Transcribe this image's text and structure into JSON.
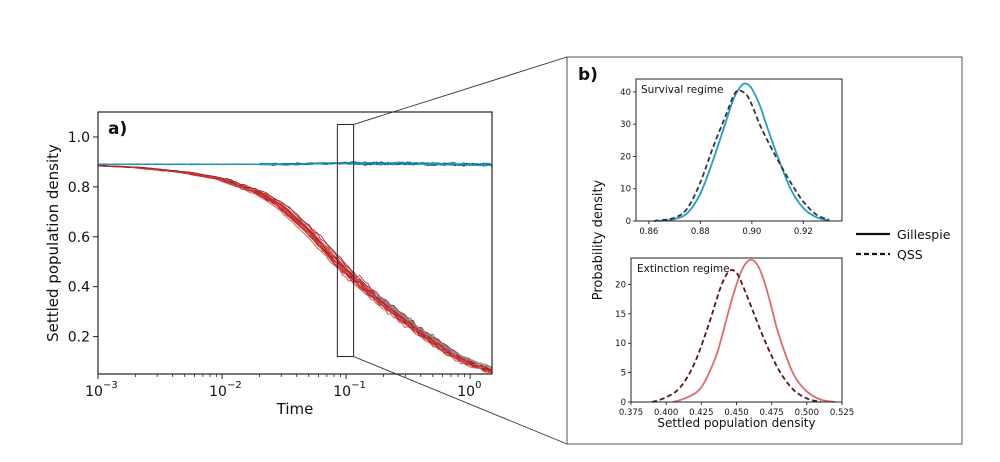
{
  "figure": {
    "legend": [
      {
        "label": "Gillespie",
        "style": "solid"
      },
      {
        "label": "QSS",
        "style": "dashed"
      }
    ],
    "colors": {
      "survival": "#1f9fc9",
      "survival_dark": "#0d3b4f",
      "extinction": "#cf2a2a",
      "extinction_dark": "#4a0f0f",
      "extinction_light": "#e06a6a",
      "qss_extinction": "#5a1414",
      "qss_survival": "#333333",
      "axis": "#222222"
    }
  },
  "chart_data": [
    {
      "id": "a",
      "panel_label": "a)",
      "type": "line",
      "x_scale": "log",
      "xlabel": "Time",
      "ylabel": "Settled population density",
      "xlim": [
        0.001,
        1.5
      ],
      "ylim": [
        0.05,
        1.1
      ],
      "x_ticks": [
        {
          "value": 0.001,
          "label": "10",
          "exp": "−3"
        },
        {
          "value": 0.01,
          "label": "10",
          "exp": "−2"
        },
        {
          "value": 0.1,
          "label": "10",
          "exp": "−1"
        },
        {
          "value": 1,
          "label": "10",
          "exp": "0"
        }
      ],
      "y_ticks": [
        {
          "value": 0.2,
          "label": "0.2"
        },
        {
          "value": 0.4,
          "label": "0.4"
        },
        {
          "value": 0.6,
          "label": "0.6"
        },
        {
          "value": 0.8,
          "label": "0.8"
        },
        {
          "value": 1.0,
          "label": "1.0"
        }
      ],
      "highlight_window": {
        "x": [
          0.085,
          0.115
        ],
        "y": [
          0.12,
          1.05
        ]
      },
      "series": [
        {
          "name": "Survival trajectories (ensemble)",
          "regime": "survival",
          "x": [
            0.001,
            0.003,
            0.01,
            0.03,
            0.1,
            0.3,
            1.0,
            1.5
          ],
          "y": [
            0.89,
            0.89,
            0.89,
            0.89,
            0.895,
            0.893,
            0.89,
            0.888
          ]
        },
        {
          "name": "Extinction trajectories (ensemble)",
          "regime": "extinction",
          "x": [
            0.001,
            0.002,
            0.005,
            0.01,
            0.02,
            0.03,
            0.05,
            0.07,
            0.1,
            0.15,
            0.2,
            0.3,
            0.5,
            0.7,
            1.0,
            1.5
          ],
          "y": [
            0.885,
            0.878,
            0.858,
            0.83,
            0.775,
            0.72,
            0.62,
            0.54,
            0.46,
            0.38,
            0.33,
            0.26,
            0.18,
            0.13,
            0.09,
            0.06
          ]
        }
      ]
    },
    {
      "id": "b_survival",
      "panel_label": "b)",
      "type": "line",
      "title": "Survival regime",
      "ylabel": "Probability density",
      "xlim": [
        0.855,
        0.935
      ],
      "ylim": [
        0,
        44
      ],
      "x_ticks": [
        {
          "value": 0.86,
          "label": "0.86"
        },
        {
          "value": 0.88,
          "label": "0.88"
        },
        {
          "value": 0.9,
          "label": "0.90"
        },
        {
          "value": 0.92,
          "label": "0.92"
        }
      ],
      "y_ticks": [
        {
          "value": 0,
          "label": "0"
        },
        {
          "value": 10,
          "label": "10"
        },
        {
          "value": 20,
          "label": "20"
        },
        {
          "value": 30,
          "label": "30"
        },
        {
          "value": 40,
          "label": "40"
        }
      ],
      "series": [
        {
          "name": "Gillespie",
          "style": "solid",
          "regime": "survival",
          "x": [
            0.864,
            0.87,
            0.875,
            0.88,
            0.885,
            0.89,
            0.893,
            0.896,
            0.898,
            0.9,
            0.903,
            0.906,
            0.91,
            0.915,
            0.92,
            0.925,
            0.93
          ],
          "y": [
            0,
            0.6,
            2.5,
            8.5,
            19,
            31,
            38,
            42,
            42.5,
            41,
            36,
            29,
            20,
            10,
            4,
            1.2,
            0.2
          ]
        },
        {
          "name": "QSS",
          "style": "dashed",
          "regime": "survival",
          "x": [
            0.862,
            0.87,
            0.875,
            0.88,
            0.885,
            0.89,
            0.893,
            0.895,
            0.898,
            0.9,
            0.903,
            0.906,
            0.91,
            0.915,
            0.92,
            0.925,
            0.93
          ],
          "y": [
            0,
            1,
            4,
            12,
            23,
            33,
            39,
            40.5,
            39,
            36,
            30,
            25,
            19,
            12,
            6,
            2,
            0.3
          ]
        }
      ]
    },
    {
      "id": "b_extinction",
      "type": "line",
      "title": "Extinction regime",
      "xlabel": "Settled population density",
      "xlim": [
        0.375,
        0.525
      ],
      "ylim": [
        0,
        24.5
      ],
      "x_ticks": [
        {
          "value": 0.375,
          "label": "0.375"
        },
        {
          "value": 0.4,
          "label": "0.400"
        },
        {
          "value": 0.425,
          "label": "0.425"
        },
        {
          "value": 0.45,
          "label": "0.450"
        },
        {
          "value": 0.475,
          "label": "0.475"
        },
        {
          "value": 0.5,
          "label": "0.500"
        },
        {
          "value": 0.525,
          "label": "0.525"
        }
      ],
      "y_ticks": [
        {
          "value": 0,
          "label": "0"
        },
        {
          "value": 5,
          "label": "5"
        },
        {
          "value": 10,
          "label": "10"
        },
        {
          "value": 15,
          "label": "15"
        },
        {
          "value": 20,
          "label": "20"
        }
      ],
      "series": [
        {
          "name": "Gillespie",
          "style": "solid",
          "regime": "extinction",
          "x": [
            0.405,
            0.415,
            0.425,
            0.435,
            0.44,
            0.445,
            0.45,
            0.455,
            0.46,
            0.465,
            0.47,
            0.475,
            0.48,
            0.49,
            0.5,
            0.51,
            0.52
          ],
          "y": [
            0,
            0.8,
            2.5,
            7.5,
            11.5,
            16,
            20,
            23,
            24.2,
            23.3,
            20.3,
            16,
            11.5,
            5,
            1.8,
            0.4,
            0
          ]
        },
        {
          "name": "QSS",
          "style": "dashed",
          "regime": "extinction",
          "x": [
            0.39,
            0.4,
            0.41,
            0.42,
            0.43,
            0.435,
            0.44,
            0.445,
            0.45,
            0.455,
            0.46,
            0.47,
            0.48,
            0.49,
            0.5,
            0.51
          ],
          "y": [
            0,
            0.8,
            2.5,
            6.5,
            13,
            16.8,
            20.3,
            22.3,
            22,
            19.5,
            16.5,
            10.5,
            5.5,
            2.2,
            0.6,
            0
          ]
        }
      ]
    }
  ]
}
